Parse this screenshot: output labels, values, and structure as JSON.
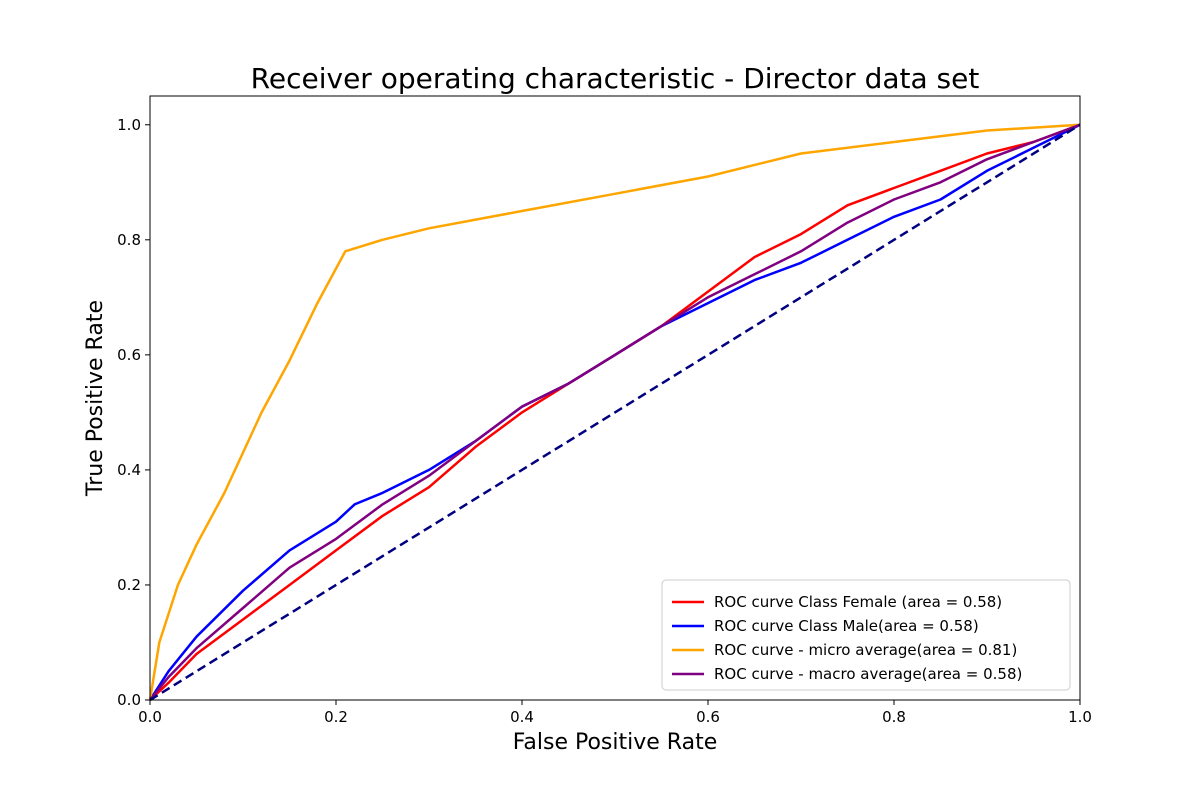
{
  "chart_data": {
    "type": "line",
    "title": "Receiver operating characteristic - Director data set",
    "xlabel": "False Positive Rate",
    "ylabel": "True Positive Rate",
    "xlim": [
      0.0,
      1.0
    ],
    "ylim": [
      0.0,
      1.05
    ],
    "x_ticks": [
      0.0,
      0.2,
      0.4,
      0.6,
      0.8,
      1.0
    ],
    "y_ticks": [
      0.0,
      0.2,
      0.4,
      0.6,
      0.8,
      1.0
    ],
    "x_tick_labels": [
      "0.0",
      "0.2",
      "0.4",
      "0.6",
      "0.8",
      "1.0"
    ],
    "y_tick_labels": [
      "0.0",
      "0.2",
      "0.4",
      "0.6",
      "0.8",
      "1.0"
    ],
    "grid": false,
    "legend_position": "lower-right",
    "series": [
      {
        "name": "ROC curve Class Female (area = 0.58)",
        "color": "#ff0000",
        "x": [
          0,
          0.02,
          0.05,
          0.1,
          0.15,
          0.2,
          0.25,
          0.3,
          0.35,
          0.4,
          0.45,
          0.5,
          0.55,
          0.6,
          0.65,
          0.7,
          0.75,
          0.8,
          0.85,
          0.9,
          0.95,
          1.0
        ],
        "y": [
          0,
          0.03,
          0.08,
          0.14,
          0.2,
          0.26,
          0.32,
          0.37,
          0.44,
          0.5,
          0.55,
          0.6,
          0.65,
          0.71,
          0.77,
          0.81,
          0.86,
          0.89,
          0.92,
          0.95,
          0.97,
          1.0
        ]
      },
      {
        "name": "ROC curve Class Male(area = 0.58)",
        "color": "#0000ff",
        "x": [
          0,
          0.02,
          0.05,
          0.1,
          0.15,
          0.2,
          0.22,
          0.25,
          0.3,
          0.35,
          0.4,
          0.45,
          0.5,
          0.55,
          0.6,
          0.65,
          0.7,
          0.75,
          0.8,
          0.85,
          0.9,
          0.95,
          1.0
        ],
        "y": [
          0,
          0.05,
          0.11,
          0.19,
          0.26,
          0.31,
          0.34,
          0.36,
          0.4,
          0.45,
          0.51,
          0.55,
          0.6,
          0.65,
          0.69,
          0.73,
          0.76,
          0.8,
          0.84,
          0.87,
          0.92,
          0.96,
          1.0
        ]
      },
      {
        "name": "ROC curve - micro average(area = 0.81)",
        "color": "#ffa500",
        "x": [
          0,
          0.01,
          0.03,
          0.05,
          0.08,
          0.1,
          0.12,
          0.15,
          0.18,
          0.21,
          0.25,
          0.3,
          0.4,
          0.5,
          0.6,
          0.7,
          0.8,
          0.9,
          1.0
        ],
        "y": [
          0,
          0.1,
          0.2,
          0.27,
          0.36,
          0.43,
          0.5,
          0.59,
          0.69,
          0.78,
          0.8,
          0.82,
          0.85,
          0.88,
          0.91,
          0.95,
          0.97,
          0.99,
          1.0
        ]
      },
      {
        "name": "ROC curve - macro average(area = 0.58)",
        "color": "#800080",
        "x": [
          0,
          0.02,
          0.05,
          0.1,
          0.15,
          0.2,
          0.25,
          0.3,
          0.35,
          0.4,
          0.45,
          0.5,
          0.55,
          0.6,
          0.65,
          0.7,
          0.75,
          0.8,
          0.85,
          0.9,
          0.95,
          1.0
        ],
        "y": [
          0,
          0.04,
          0.09,
          0.16,
          0.23,
          0.28,
          0.34,
          0.39,
          0.45,
          0.51,
          0.55,
          0.6,
          0.65,
          0.7,
          0.74,
          0.78,
          0.83,
          0.87,
          0.9,
          0.94,
          0.97,
          1.0
        ]
      },
      {
        "name": "",
        "color": "#000080",
        "dashed": true,
        "x": [
          0,
          1
        ],
        "y": [
          0,
          1
        ]
      }
    ]
  }
}
